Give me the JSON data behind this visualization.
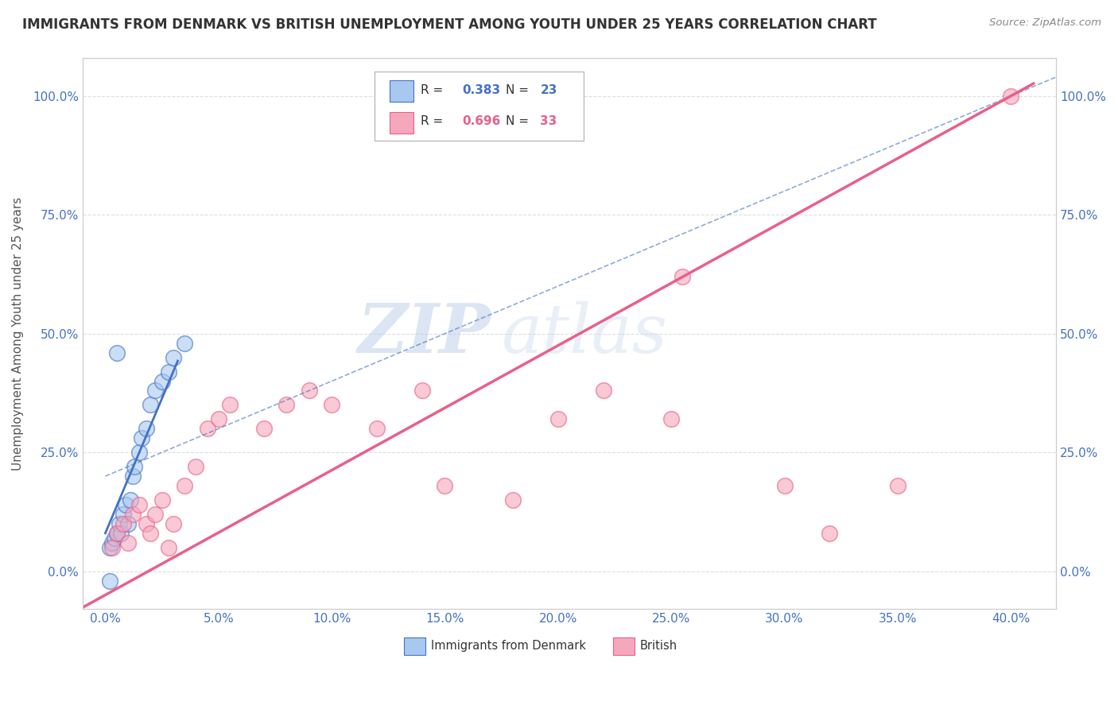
{
  "title": "IMMIGRANTS FROM DENMARK VS BRITISH UNEMPLOYMENT AMONG YOUTH UNDER 25 YEARS CORRELATION CHART",
  "source": "Source: ZipAtlas.com",
  "xlabel_ticks": [
    "0.0%",
    "5.0%",
    "10.0%",
    "15.0%",
    "20.0%",
    "25.0%",
    "30.0%",
    "35.0%",
    "40.0%"
  ],
  "xlabel_vals": [
    0.0,
    5.0,
    10.0,
    15.0,
    20.0,
    25.0,
    30.0,
    35.0,
    40.0
  ],
  "ylabel_ticks": [
    "0.0%",
    "25.0%",
    "50.0%",
    "75.0%",
    "100.0%"
  ],
  "ylabel_vals": [
    0.0,
    25.0,
    50.0,
    75.0,
    100.0
  ],
  "xlim": [
    -1.0,
    42.0
  ],
  "ylim": [
    -8.0,
    108.0
  ],
  "legend_r_blue": "R = 0.383",
  "legend_n_blue": "N = 23",
  "legend_r_pink": "R = 0.696",
  "legend_n_pink": "N = 33",
  "ylabel": "Unemployment Among Youth under 25 years",
  "blue_color": "#a8c8f0",
  "pink_color": "#f5a8bc",
  "blue_line_color": "#4472c4",
  "pink_line_color": "#e8608a",
  "denmark_x": [
    0.2,
    0.3,
    0.4,
    0.5,
    0.6,
    0.7,
    0.8,
    0.9,
    1.0,
    1.1,
    1.2,
    1.3,
    1.5,
    1.6,
    1.8,
    2.0,
    2.2,
    2.5,
    2.8,
    3.0,
    3.5,
    0.5,
    0.2
  ],
  "denmark_y": [
    5.0,
    6.0,
    7.0,
    8.0,
    10.0,
    8.0,
    12.0,
    14.0,
    10.0,
    15.0,
    20.0,
    22.0,
    25.0,
    28.0,
    30.0,
    35.0,
    38.0,
    40.0,
    42.0,
    45.0,
    48.0,
    46.0,
    -2.0
  ],
  "british_x": [
    0.3,
    0.5,
    0.8,
    1.0,
    1.2,
    1.5,
    1.8,
    2.0,
    2.2,
    2.5,
    2.8,
    3.0,
    3.5,
    4.0,
    4.5,
    5.0,
    5.5,
    7.0,
    8.0,
    9.0,
    10.0,
    12.0,
    14.0,
    15.0,
    18.0,
    20.0,
    22.0,
    25.0,
    25.5,
    30.0,
    32.0,
    35.0,
    40.0
  ],
  "british_y": [
    5.0,
    8.0,
    10.0,
    6.0,
    12.0,
    14.0,
    10.0,
    8.0,
    12.0,
    15.0,
    5.0,
    10.0,
    18.0,
    22.0,
    30.0,
    32.0,
    35.0,
    30.0,
    35.0,
    38.0,
    35.0,
    30.0,
    38.0,
    18.0,
    15.0,
    32.0,
    38.0,
    32.0,
    62.0,
    18.0,
    8.0,
    18.0,
    100.0
  ],
  "watermark_zip": "ZIP",
  "watermark_atlas": "atlas",
  "background_color": "#ffffff",
  "grid_color": "#dddddd"
}
